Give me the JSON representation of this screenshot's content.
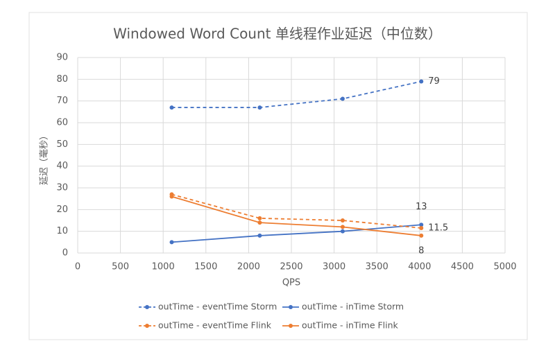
{
  "chart_data": {
    "type": "line",
    "title": "Windowed Word Count 单线程作业延迟（中位数）",
    "x_label": "QPS",
    "y_label": "延迟（毫秒）",
    "x": [
      1100,
      2130,
      3100,
      4020
    ],
    "xlim": [
      0,
      5000
    ],
    "xticks": [
      0,
      500,
      1000,
      1500,
      2000,
      2500,
      3000,
      3500,
      4000,
      4500,
      5000
    ],
    "ylim": [
      0,
      90
    ],
    "yticks": [
      0,
      10,
      20,
      30,
      40,
      50,
      60,
      70,
      80,
      90
    ],
    "grid": true,
    "legend": "bottom",
    "series": [
      {
        "name": "outTime - eventTime Storm",
        "color": "#4472c4",
        "dashed": true,
        "values": [
          67,
          67,
          71,
          79
        ],
        "value_labels": [
          null,
          null,
          null,
          "79"
        ]
      },
      {
        "name": "outTime - inTime Storm",
        "color": "#4472c4",
        "dashed": false,
        "values": [
          5,
          8,
          10,
          13
        ],
        "value_labels": [
          null,
          null,
          null,
          "13"
        ]
      },
      {
        "name": "outTime - eventTime Flink",
        "color": "#ed7d31",
        "dashed": true,
        "values": [
          27,
          16,
          15,
          11.5
        ],
        "value_labels": [
          null,
          null,
          null,
          "11.5"
        ]
      },
      {
        "name": "outTime - inTime Flink",
        "color": "#ed7d31",
        "dashed": false,
        "values": [
          26,
          14,
          12,
          8
        ],
        "value_labels": [
          null,
          null,
          null,
          "8"
        ]
      }
    ]
  }
}
